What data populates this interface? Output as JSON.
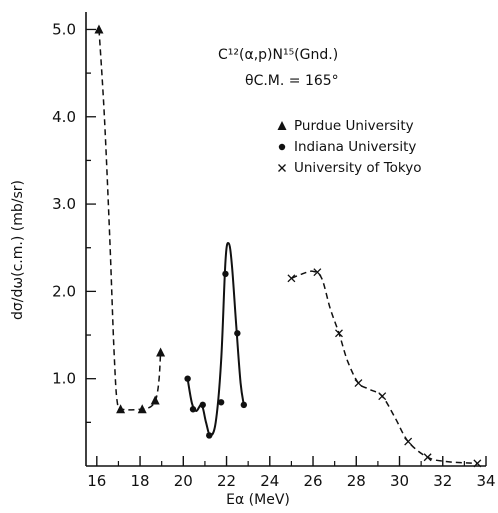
{
  "chart_data": {
    "type": "scatter",
    "xlabel": "Eα (MeV)",
    "ylabel": "dσ/dω(c.m.)   (mb/sr)",
    "xlim": [
      15.5,
      34
    ],
    "ylim": [
      0,
      5.2
    ],
    "x_ticks": [
      "16",
      "18",
      "20",
      "22",
      "24",
      "26",
      "28",
      "30",
      "32",
      "34"
    ],
    "y_ticks": [
      "1.0",
      "2.0",
      "3.0",
      "4.0",
      "5.0"
    ],
    "grid": false,
    "legend_position": "right",
    "annotation_lines": [
      "C¹²(α,p)N¹⁵(Gnd.)",
      "θC.M. = 165°"
    ],
    "series": [
      {
        "name": "Purdue University",
        "marker": "triangle",
        "points": [
          [
            16.1,
            5.0
          ],
          [
            17.1,
            0.65
          ],
          [
            18.1,
            0.65
          ],
          [
            18.7,
            0.75
          ],
          [
            18.95,
            1.3
          ]
        ]
      },
      {
        "name": "Indiana University",
        "marker": "circle",
        "points": [
          [
            20.2,
            1.0
          ],
          [
            20.45,
            0.65
          ],
          [
            20.9,
            0.7
          ],
          [
            21.2,
            0.35
          ],
          [
            21.75,
            0.73
          ],
          [
            21.95,
            2.2
          ],
          [
            22.5,
            1.52
          ],
          [
            22.8,
            0.7
          ]
        ]
      },
      {
        "name": "University of Tokyo",
        "marker": "cross",
        "points": [
          [
            25.0,
            2.15
          ],
          [
            26.2,
            2.22
          ],
          [
            27.2,
            1.52
          ],
          [
            28.1,
            0.95
          ],
          [
            29.2,
            0.8
          ],
          [
            30.4,
            0.28
          ],
          [
            31.3,
            0.1
          ],
          [
            33.6,
            0.03
          ]
        ]
      }
    ],
    "curves": [
      {
        "style": "dashed",
        "points": [
          [
            16.1,
            5.0
          ],
          [
            16.35,
            4.0
          ],
          [
            16.6,
            2.6
          ],
          [
            16.8,
            1.3
          ],
          [
            16.95,
            0.72
          ],
          [
            17.2,
            0.65
          ],
          [
            18.0,
            0.65
          ],
          [
            18.5,
            0.68
          ],
          [
            18.75,
            0.78
          ],
          [
            18.88,
            1.0
          ],
          [
            18.95,
            1.3
          ]
        ]
      },
      {
        "style": "solid",
        "points": [
          [
            20.2,
            1.0
          ],
          [
            20.4,
            0.72
          ],
          [
            20.6,
            0.63
          ],
          [
            20.85,
            0.7
          ],
          [
            21.05,
            0.5
          ],
          [
            21.25,
            0.35
          ],
          [
            21.5,
            0.5
          ],
          [
            21.75,
            1.2
          ],
          [
            21.95,
            2.35
          ],
          [
            22.1,
            2.55
          ],
          [
            22.25,
            2.3
          ],
          [
            22.45,
            1.6
          ],
          [
            22.65,
            0.95
          ],
          [
            22.8,
            0.7
          ]
        ]
      },
      {
        "style": "dashed",
        "points": [
          [
            25.0,
            2.15
          ],
          [
            25.5,
            2.2
          ],
          [
            26.0,
            2.23
          ],
          [
            26.4,
            2.15
          ],
          [
            26.8,
            1.8
          ],
          [
            27.2,
            1.52
          ],
          [
            27.6,
            1.2
          ],
          [
            28.1,
            0.95
          ],
          [
            28.6,
            0.88
          ],
          [
            29.2,
            0.8
          ],
          [
            29.8,
            0.55
          ],
          [
            30.4,
            0.28
          ],
          [
            31.3,
            0.1
          ],
          [
            32.2,
            0.05
          ],
          [
            33.6,
            0.03
          ]
        ]
      }
    ]
  }
}
